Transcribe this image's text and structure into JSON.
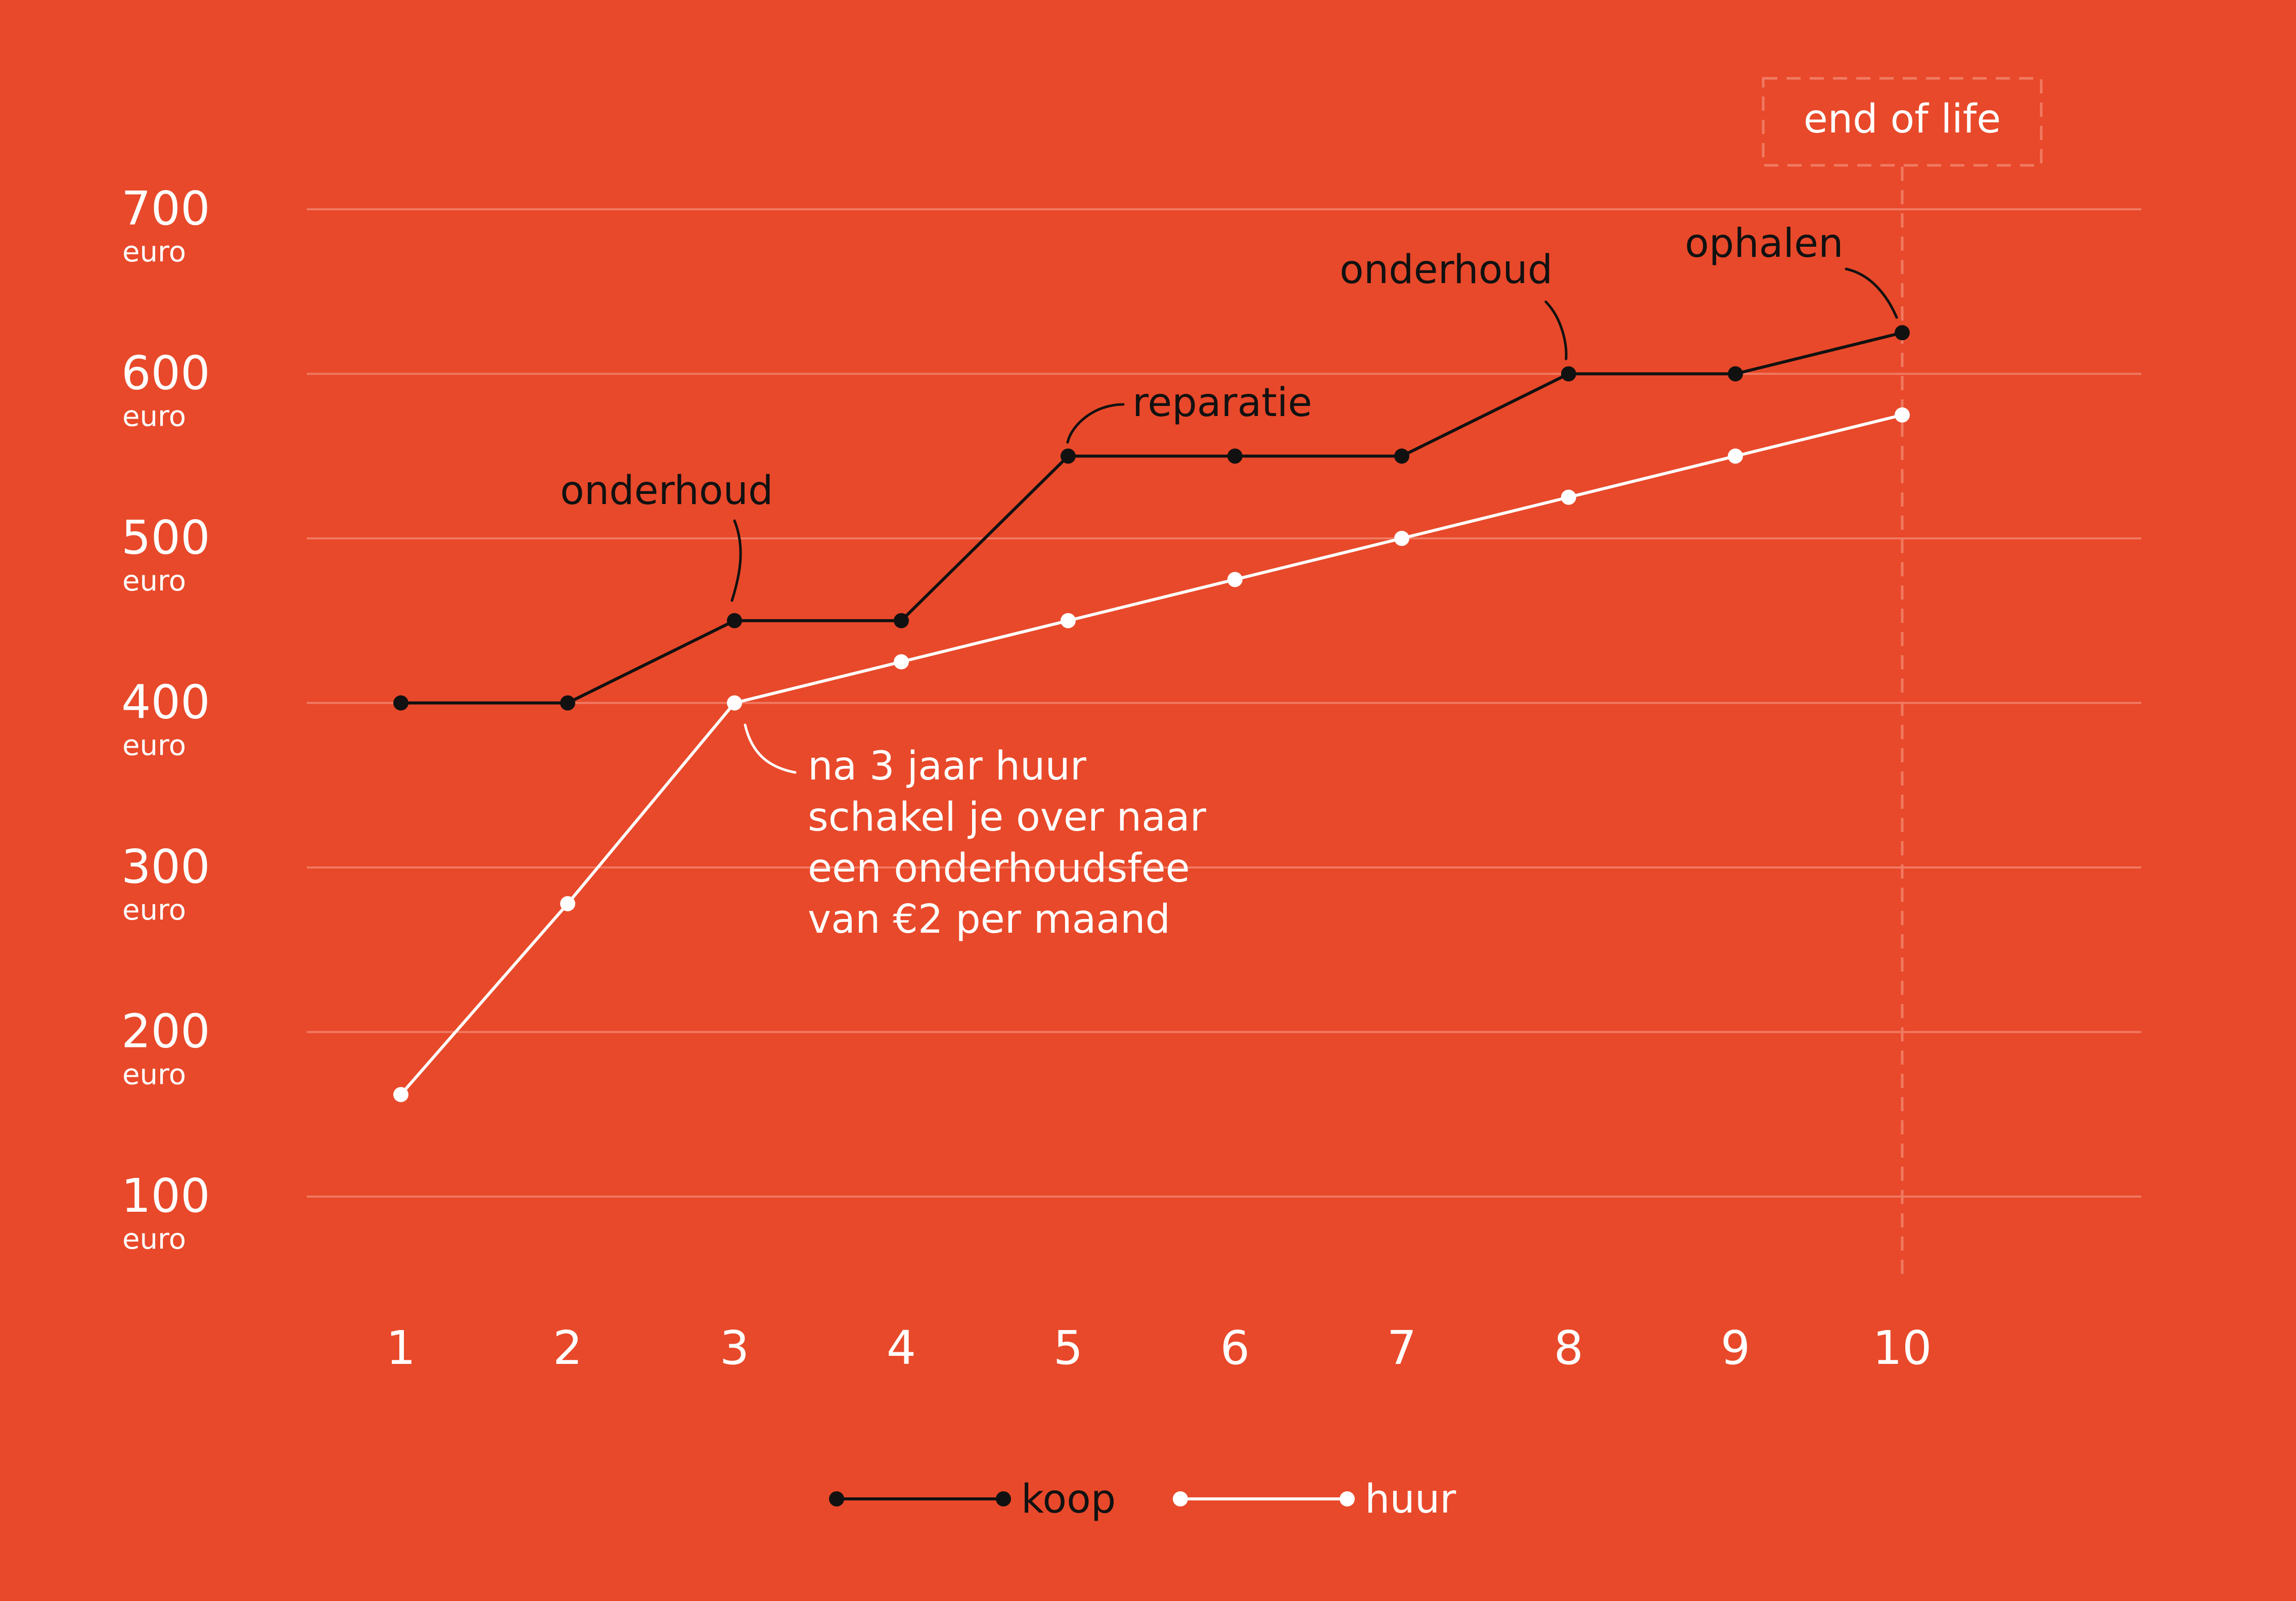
{
  "colors": {
    "background": "#E8492A",
    "koop": "#111111",
    "huur": "#FFFFFF",
    "gridline": "#F07A62"
  },
  "chart_data": {
    "type": "line",
    "title": "",
    "xlabel": "",
    "ylabel": "",
    "categories": [
      "1",
      "2",
      "3",
      "4",
      "5",
      "6",
      "7",
      "8",
      "9",
      "10"
    ],
    "x": [
      1,
      2,
      3,
      4,
      5,
      6,
      7,
      8,
      9,
      10
    ],
    "ylim": [
      0,
      700
    ],
    "yticks": [
      {
        "value": 700,
        "label": "700",
        "unit": "euro"
      },
      {
        "value": 600,
        "label": "600",
        "unit": "euro"
      },
      {
        "value": 500,
        "label": "500",
        "unit": "euro"
      },
      {
        "value": 400,
        "label": "400",
        "unit": "euro"
      },
      {
        "value": 300,
        "label": "300",
        "unit": "euro"
      },
      {
        "value": 200,
        "label": "200",
        "unit": "euro"
      },
      {
        "value": 100,
        "label": "100",
        "unit": "euro"
      }
    ],
    "grid": true,
    "legend_position": "bottom-center",
    "series": [
      {
        "name": "koop",
        "color": "#111111",
        "values": [
          400,
          400,
          450,
          450,
          550,
          550,
          550,
          600,
          600,
          625
        ]
      },
      {
        "name": "huur",
        "color": "#FFFFFF",
        "values": [
          162,
          278,
          400,
          425,
          450,
          475,
          500,
          525,
          550,
          575
        ]
      }
    ],
    "annotations": [
      {
        "series": "koop",
        "x": 3,
        "lines": [
          "onderhoud"
        ]
      },
      {
        "series": "koop",
        "x": 5,
        "lines": [
          "reparatie"
        ]
      },
      {
        "series": "koop",
        "x": 8,
        "lines": [
          "onderhoud"
        ]
      },
      {
        "series": "koop",
        "x": 10,
        "lines": [
          "ophalen"
        ]
      },
      {
        "series": "huur",
        "x": 3,
        "lines": [
          "na 3 jaar huur",
          "schakel je over naar",
          "een onderhoudsfee",
          "van €2 per maand"
        ]
      }
    ],
    "marker": {
      "x": 10,
      "label": "end of life"
    }
  }
}
